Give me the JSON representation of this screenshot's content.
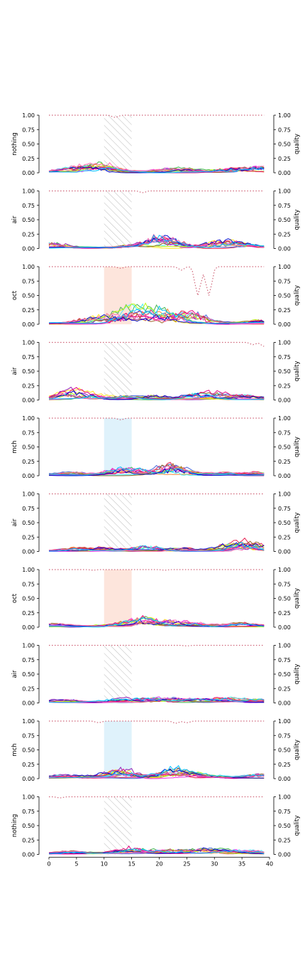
{
  "chart_data": {
    "type": "line",
    "x_range": [
      0,
      39
    ],
    "x_ticks": [
      0,
      5,
      10,
      15,
      20,
      25,
      30,
      35,
      40
    ],
    "y_ticks": [
      0.0,
      0.25,
      0.5,
      0.75,
      1.0
    ],
    "y_tick_labels": [
      "0.00",
      "0.25",
      "0.50",
      "0.75",
      "1.00"
    ],
    "x_tick_labels": [
      "0",
      "5",
      "10",
      "15",
      "20",
      "25",
      "30",
      "35",
      "40"
    ],
    "ylim": [
      0,
      1
    ],
    "right_ylabel": "quality",
    "stimulus_window": [
      10,
      15
    ],
    "region_colors": {
      "hatch": "#bbbbbb",
      "oct": "#fde5dc",
      "mch": "#dff2fb"
    },
    "quality_line_color": "#d0667a",
    "trace_palette": [
      "#e6194b",
      "#3cb44b",
      "#ffe119",
      "#4363d8",
      "#f58231",
      "#911eb4",
      "#46f0f0",
      "#f032e6",
      "#bcf60c",
      "#9a6324",
      "#e6007e",
      "#0000cd",
      "#ff69b4",
      "#00bfff"
    ],
    "panels": [
      {
        "ylabel": "nothing",
        "region": "hatch",
        "quality_dips": [
          [
            12,
            0.96
          ]
        ],
        "bumps": [
          [
            4,
            0.08
          ],
          [
            8,
            0.1
          ],
          [
            10,
            0.09
          ],
          [
            21,
            0.05
          ],
          [
            25,
            0.06
          ],
          [
            33,
            0.07
          ],
          [
            38,
            0.09
          ]
        ]
      },
      {
        "ylabel": "air",
        "region": "hatch",
        "quality_dips": [
          [
            17,
            0.97
          ]
        ],
        "bumps": [
          [
            0,
            0.1
          ],
          [
            15,
            0.05
          ],
          [
            20,
            0.17
          ],
          [
            22,
            0.1
          ],
          [
            30,
            0.08
          ],
          [
            33,
            0.1
          ],
          [
            36,
            0.05
          ]
        ]
      },
      {
        "ylabel": "oct",
        "region": "oct",
        "quality_dips": [
          [
            13,
            0.97
          ],
          [
            24,
            0.94
          ],
          [
            27,
            0.5
          ],
          [
            29,
            0.5
          ]
        ],
        "bumps": [
          [
            8,
            0.1
          ],
          [
            12,
            0.15
          ],
          [
            15,
            0.22
          ],
          [
            16,
            0.18
          ],
          [
            20,
            0.18
          ],
          [
            22,
            0.15
          ],
          [
            26,
            0.2
          ],
          [
            38,
            0.06
          ]
        ]
      },
      {
        "ylabel": "air",
        "region": "hatch",
        "quality_dips": [
          [
            39,
            0.93
          ],
          [
            37,
            0.96
          ]
        ],
        "bumps": [
          [
            3,
            0.1
          ],
          [
            5,
            0.14
          ],
          [
            8,
            0.08
          ],
          [
            14,
            0.05
          ],
          [
            19,
            0.07
          ],
          [
            27,
            0.1
          ],
          [
            31,
            0.1
          ],
          [
            36,
            0.06
          ]
        ]
      },
      {
        "ylabel": "mch",
        "region": "mch",
        "quality_dips": [
          [
            13,
            0.97
          ]
        ],
        "bumps": [
          [
            4,
            0.05
          ],
          [
            13,
            0.1
          ],
          [
            16,
            0.08
          ],
          [
            21,
            0.12
          ],
          [
            23,
            0.15
          ],
          [
            32,
            0.04
          ],
          [
            38,
            0.05
          ]
        ]
      },
      {
        "ylabel": "air",
        "region": "hatch",
        "quality_dips": [],
        "bumps": [
          [
            5,
            0.05
          ],
          [
            10,
            0.05
          ],
          [
            18,
            0.1
          ],
          [
            24,
            0.05
          ],
          [
            33,
            0.12
          ],
          [
            35,
            0.14
          ],
          [
            38,
            0.09
          ]
        ]
      },
      {
        "ylabel": "oct",
        "region": "oct",
        "quality_dips": [
          [
            8,
            0.99
          ],
          [
            21,
            0.99
          ]
        ],
        "bumps": [
          [
            1,
            0.04
          ],
          [
            10,
            0.03
          ],
          [
            16,
            0.13
          ],
          [
            18,
            0.1
          ],
          [
            22,
            0.09
          ],
          [
            26,
            0.07
          ],
          [
            35,
            0.06
          ]
        ]
      },
      {
        "ylabel": "air",
        "region": "hatch",
        "quality_dips": [
          [
            25,
            0.99
          ]
        ],
        "bumps": [
          [
            3,
            0.04
          ],
          [
            13,
            0.06
          ],
          [
            18,
            0.07
          ],
          [
            22,
            0.08
          ],
          [
            27,
            0.06
          ],
          [
            32,
            0.08
          ],
          [
            38,
            0.05
          ]
        ]
      },
      {
        "ylabel": "mch",
        "region": "mch",
        "quality_dips": [
          [
            9,
            0.97
          ],
          [
            23,
            0.96
          ],
          [
            25,
            0.97
          ]
        ],
        "bumps": [
          [
            3,
            0.05
          ],
          [
            12,
            0.12
          ],
          [
            14,
            0.09
          ],
          [
            22,
            0.12
          ],
          [
            24,
            0.1
          ],
          [
            28,
            0.05
          ],
          [
            38,
            0.06
          ]
        ]
      },
      {
        "ylabel": "nothing",
        "region": "hatch",
        "quality_dips": [
          [
            2,
            0.98
          ]
        ],
        "bumps": [
          [
            4,
            0.04
          ],
          [
            14,
            0.07
          ],
          [
            16,
            0.08
          ],
          [
            22,
            0.07
          ],
          [
            28,
            0.08
          ],
          [
            32,
            0.06
          ],
          [
            37,
            0.05
          ]
        ]
      }
    ]
  }
}
